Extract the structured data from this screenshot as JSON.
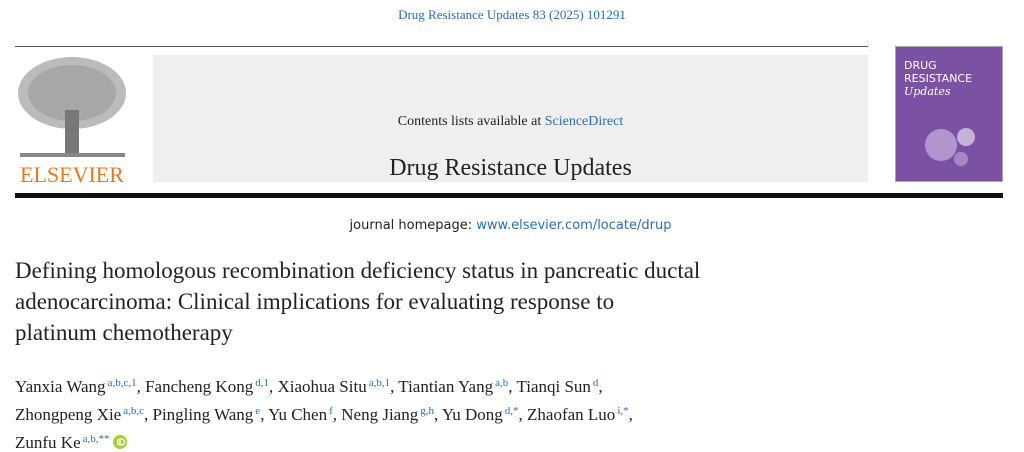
{
  "citation": "Drug Resistance Updates 83 (2025) 101291",
  "header": {
    "contents_prefix": "Contents lists available at",
    "contents_link": "ScienceDirect",
    "journal": "Drug Resistance Updates",
    "homepage_prefix": "journal homepage:",
    "homepage_link": "www.elsevier.com/locate/drup"
  },
  "publisher": "ELSEVIER",
  "cover": {
    "line1": "DRUG",
    "line2": "RESISTANCE",
    "line3": "Updates"
  },
  "title_lines": [
    "Defining homologous recombination deficiency status in pancreatic ductal",
    "adenocarcinoma: Clinical implications for evaluating response to",
    "platinum chemotherapy"
  ],
  "author_separator": ",",
  "author_lines": [
    [
      {
        "name": "Yanxia Wang",
        "aff": "a,b,c,1"
      },
      {
        "name": "Fancheng Kong",
        "aff": "d,1"
      },
      {
        "name": "Xiaohua Situ",
        "aff": "a,b,1"
      },
      {
        "name": "Tiantian Yang",
        "aff": "a,b"
      },
      {
        "name": "Tianqi Sun",
        "aff": "d"
      }
    ],
    [
      {
        "name": "Zhongpeng Xie",
        "aff": "a,b,c"
      },
      {
        "name": "Pingling Wang",
        "aff": "e"
      },
      {
        "name": "Yu Chen",
        "aff": "f"
      },
      {
        "name": "Neng Jiang",
        "aff": "g,h"
      },
      {
        "name": "Yu Dong",
        "aff": "d,*"
      },
      {
        "name": "Zhaofan Luo",
        "aff": "i,*"
      }
    ],
    [
      {
        "name": "Zunfu Ke",
        "aff": "a,b,**"
      }
    ]
  ]
}
